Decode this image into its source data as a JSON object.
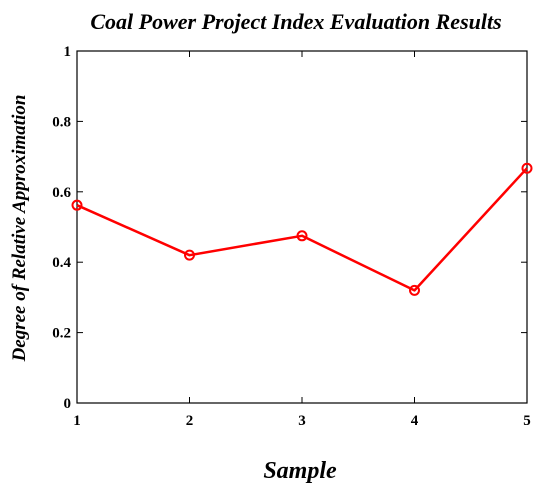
{
  "chart_data": {
    "type": "line",
    "title": "Coal Power Project Index Evaluation Results",
    "xlabel": "Sample",
    "ylabel": "Degree of Relative Approximation",
    "x": [
      1,
      2,
      3,
      4,
      5
    ],
    "xlim": [
      1,
      5
    ],
    "ylim": [
      0,
      1
    ],
    "xticks": [
      "1",
      "2",
      "3",
      "4",
      "5"
    ],
    "yticks": [
      "0",
      "0.2",
      "0.4",
      "0.6",
      "0.8",
      "1"
    ],
    "grid": false,
    "series": [
      {
        "values": [
          0.562,
          0.42,
          0.475,
          0.32,
          0.667
        ],
        "color": "#ff0000",
        "marker": "circle"
      }
    ]
  }
}
